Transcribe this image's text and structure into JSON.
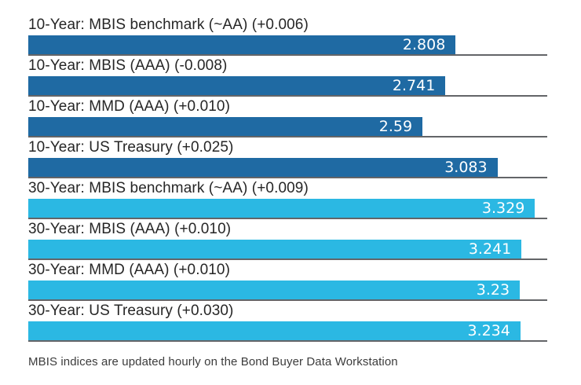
{
  "chart_data": {
    "type": "bar",
    "orientation": "horizontal",
    "title": "",
    "xlabel": "",
    "ylabel": "",
    "xlim": [
      0,
      3.41
    ],
    "grid": false,
    "legend": "none",
    "bar_colors": {
      "ten_year": "#1f6aa3",
      "thirty_year": "#2bb8e3"
    },
    "separator_color": "#636568",
    "label_color": "#262626",
    "value_text_color": "#ffffff",
    "bars": [
      {
        "label": "10-Year: MBIS benchmark (~AA) (+0.006)",
        "value": 2.808,
        "display_value": "2.808",
        "group": "ten_year"
      },
      {
        "label": "10-Year: MBIS (AAA) (-0.008)",
        "value": 2.741,
        "display_value": "2.741",
        "group": "ten_year"
      },
      {
        "label": "10-Year: MMD (AAA) (+0.010)",
        "value": 2.59,
        "display_value": "2.59",
        "group": "ten_year"
      },
      {
        "label": "10-Year: US Treasury (+0.025)",
        "value": 3.083,
        "display_value": "3.083",
        "group": "ten_year"
      },
      {
        "label": "30-Year: MBIS benchmark (~AA) (+0.009)",
        "value": 3.329,
        "display_value": "3.329",
        "group": "thirty_year"
      },
      {
        "label": "30-Year: MBIS (AAA) (+0.010)",
        "value": 3.241,
        "display_value": "3.241",
        "group": "thirty_year"
      },
      {
        "label": "30-Year: MMD (AAA) (+0.010)",
        "value": 3.23,
        "display_value": "3.23",
        "group": "thirty_year"
      },
      {
        "label": "30-Year: US Treasury (+0.030)",
        "value": 3.234,
        "display_value": "3.234",
        "group": "thirty_year"
      }
    ],
    "footnote": "MBIS indices are updated hourly on the Bond Buyer Data Workstation"
  }
}
